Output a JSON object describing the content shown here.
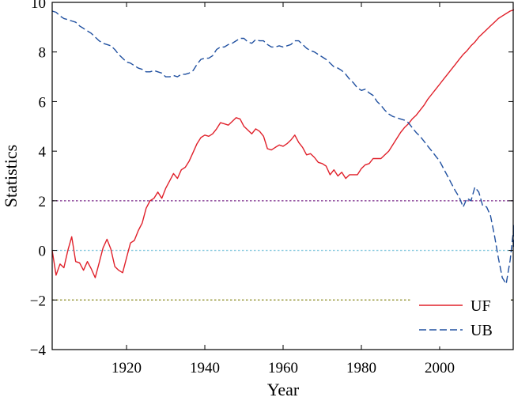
{
  "chart_data": {
    "type": "line",
    "xlabel": "Year",
    "ylabel": "Statistics",
    "xlim": [
      1901,
      2019
    ],
    "ylim": [
      -4,
      10
    ],
    "x_ticks": [
      1920,
      1940,
      1960,
      1980,
      2000
    ],
    "y_ticks": [
      -4,
      -2,
      0,
      2,
      4,
      6,
      8,
      10
    ],
    "y_tick_labels": [
      "−4",
      "−2",
      "0",
      "2",
      "4",
      "6",
      "8",
      "10"
    ],
    "grid": false,
    "legend_position": "bottom-right",
    "reference_lines": [
      {
        "y": 2,
        "color": "#7a2a8a",
        "style": "dotted"
      },
      {
        "y": 0,
        "color": "#7fc6dc",
        "style": "dotted"
      },
      {
        "y": -2,
        "color": "#8a8a20",
        "style": "dotted"
      }
    ],
    "series": [
      {
        "name": "UF",
        "color": "#e0202a",
        "style": "solid",
        "points": [
          [
            1901,
            0
          ],
          [
            1902,
            -1.0
          ],
          [
            1903,
            -0.55
          ],
          [
            1904,
            -0.7
          ],
          [
            1905,
            0.0
          ],
          [
            1906,
            0.55
          ],
          [
            1907,
            -0.45
          ],
          [
            1908,
            -0.5
          ],
          [
            1909,
            -0.8
          ],
          [
            1910,
            -0.45
          ],
          [
            1911,
            -0.75
          ],
          [
            1912,
            -1.1
          ],
          [
            1913,
            -0.5
          ],
          [
            1914,
            0.1
          ],
          [
            1915,
            0.45
          ],
          [
            1916,
            0.05
          ],
          [
            1917,
            -0.65
          ],
          [
            1918,
            -0.8
          ],
          [
            1919,
            -0.9
          ],
          [
            1920,
            -0.3
          ],
          [
            1921,
            0.3
          ],
          [
            1922,
            0.4
          ],
          [
            1923,
            0.8
          ],
          [
            1924,
            1.1
          ],
          [
            1925,
            1.7
          ],
          [
            1926,
            2.0
          ],
          [
            1927,
            2.1
          ],
          [
            1928,
            2.35
          ],
          [
            1929,
            2.1
          ],
          [
            1930,
            2.5
          ],
          [
            1931,
            2.8
          ],
          [
            1932,
            3.1
          ],
          [
            1933,
            2.9
          ],
          [
            1934,
            3.25
          ],
          [
            1935,
            3.35
          ],
          [
            1936,
            3.6
          ],
          [
            1937,
            3.95
          ],
          [
            1938,
            4.3
          ],
          [
            1939,
            4.55
          ],
          [
            1940,
            4.65
          ],
          [
            1941,
            4.6
          ],
          [
            1942,
            4.7
          ],
          [
            1943,
            4.9
          ],
          [
            1944,
            5.15
          ],
          [
            1945,
            5.1
          ],
          [
            1946,
            5.05
          ],
          [
            1947,
            5.2
          ],
          [
            1948,
            5.35
          ],
          [
            1949,
            5.3
          ],
          [
            1950,
            5.0
          ],
          [
            1951,
            4.85
          ],
          [
            1952,
            4.7
          ],
          [
            1953,
            4.9
          ],
          [
            1954,
            4.8
          ],
          [
            1955,
            4.6
          ],
          [
            1956,
            4.1
          ],
          [
            1957,
            4.05
          ],
          [
            1958,
            4.15
          ],
          [
            1959,
            4.25
          ],
          [
            1960,
            4.2
          ],
          [
            1961,
            4.3
          ],
          [
            1962,
            4.45
          ],
          [
            1963,
            4.65
          ],
          [
            1964,
            4.35
          ],
          [
            1965,
            4.15
          ],
          [
            1966,
            3.85
          ],
          [
            1967,
            3.9
          ],
          [
            1968,
            3.75
          ],
          [
            1969,
            3.55
          ],
          [
            1970,
            3.5
          ],
          [
            1971,
            3.4
          ],
          [
            1972,
            3.05
          ],
          [
            1973,
            3.25
          ],
          [
            1974,
            3.0
          ],
          [
            1975,
            3.15
          ],
          [
            1976,
            2.9
          ],
          [
            1977,
            3.05
          ],
          [
            1978,
            3.05
          ],
          [
            1979,
            3.05
          ],
          [
            1980,
            3.3
          ],
          [
            1981,
            3.45
          ],
          [
            1982,
            3.5
          ],
          [
            1983,
            3.7
          ],
          [
            1984,
            3.7
          ],
          [
            1985,
            3.7
          ],
          [
            1986,
            3.85
          ],
          [
            1987,
            4.0
          ],
          [
            1988,
            4.25
          ],
          [
            1989,
            4.5
          ],
          [
            1990,
            4.75
          ],
          [
            1991,
            4.95
          ],
          [
            1992,
            5.1
          ],
          [
            1993,
            5.3
          ],
          [
            1994,
            5.45
          ],
          [
            1995,
            5.65
          ],
          [
            1996,
            5.85
          ],
          [
            1997,
            6.1
          ],
          [
            1998,
            6.3
          ],
          [
            1999,
            6.5
          ],
          [
            2000,
            6.7
          ],
          [
            2001,
            6.9
          ],
          [
            2002,
            7.1
          ],
          [
            2003,
            7.3
          ],
          [
            2004,
            7.5
          ],
          [
            2005,
            7.7
          ],
          [
            2006,
            7.9
          ],
          [
            2007,
            8.05
          ],
          [
            2008,
            8.25
          ],
          [
            2009,
            8.4
          ],
          [
            2010,
            8.6
          ],
          [
            2011,
            8.75
          ],
          [
            2012,
            8.9
          ],
          [
            2013,
            9.05
          ],
          [
            2014,
            9.2
          ],
          [
            2015,
            9.35
          ],
          [
            2016,
            9.45
          ],
          [
            2017,
            9.55
          ],
          [
            2018,
            9.65
          ],
          [
            2019,
            9.7
          ]
        ]
      },
      {
        "name": "UB",
        "color": "#2050a0",
        "style": "dashed",
        "points": [
          [
            1901,
            9.65
          ],
          [
            1902,
            9.6
          ],
          [
            1903,
            9.45
          ],
          [
            1904,
            9.35
          ],
          [
            1905,
            9.3
          ],
          [
            1906,
            9.25
          ],
          [
            1907,
            9.2
          ],
          [
            1908,
            9.05
          ],
          [
            1909,
            8.95
          ],
          [
            1910,
            8.85
          ],
          [
            1911,
            8.75
          ],
          [
            1912,
            8.6
          ],
          [
            1913,
            8.45
          ],
          [
            1914,
            8.35
          ],
          [
            1915,
            8.3
          ],
          [
            1916,
            8.25
          ],
          [
            1917,
            8.1
          ],
          [
            1918,
            7.9
          ],
          [
            1919,
            7.75
          ],
          [
            1920,
            7.6
          ],
          [
            1921,
            7.55
          ],
          [
            1922,
            7.45
          ],
          [
            1923,
            7.35
          ],
          [
            1924,
            7.3
          ],
          [
            1925,
            7.2
          ],
          [
            1926,
            7.2
          ],
          [
            1927,
            7.25
          ],
          [
            1928,
            7.2
          ],
          [
            1929,
            7.15
          ],
          [
            1930,
            7.0
          ],
          [
            1931,
            7.0
          ],
          [
            1932,
            7.05
          ],
          [
            1933,
            7.0
          ],
          [
            1934,
            7.1
          ],
          [
            1935,
            7.1
          ],
          [
            1936,
            7.15
          ],
          [
            1937,
            7.25
          ],
          [
            1938,
            7.5
          ],
          [
            1939,
            7.7
          ],
          [
            1940,
            7.75
          ],
          [
            1941,
            7.75
          ],
          [
            1942,
            7.85
          ],
          [
            1943,
            8.1
          ],
          [
            1944,
            8.2
          ],
          [
            1945,
            8.2
          ],
          [
            1946,
            8.3
          ],
          [
            1947,
            8.35
          ],
          [
            1948,
            8.45
          ],
          [
            1949,
            8.55
          ],
          [
            1950,
            8.55
          ],
          [
            1951,
            8.4
          ],
          [
            1952,
            8.35
          ],
          [
            1953,
            8.5
          ],
          [
            1954,
            8.45
          ],
          [
            1955,
            8.45
          ],
          [
            1956,
            8.3
          ],
          [
            1957,
            8.2
          ],
          [
            1958,
            8.2
          ],
          [
            1959,
            8.25
          ],
          [
            1960,
            8.2
          ],
          [
            1961,
            8.25
          ],
          [
            1962,
            8.3
          ],
          [
            1963,
            8.45
          ],
          [
            1964,
            8.45
          ],
          [
            1965,
            8.3
          ],
          [
            1966,
            8.15
          ],
          [
            1967,
            8.05
          ],
          [
            1968,
            8.0
          ],
          [
            1969,
            7.9
          ],
          [
            1970,
            7.8
          ],
          [
            1971,
            7.7
          ],
          [
            1972,
            7.55
          ],
          [
            1973,
            7.4
          ],
          [
            1974,
            7.35
          ],
          [
            1975,
            7.25
          ],
          [
            1976,
            7.1
          ],
          [
            1977,
            6.9
          ],
          [
            1978,
            6.75
          ],
          [
            1979,
            6.55
          ],
          [
            1980,
            6.45
          ],
          [
            1981,
            6.5
          ],
          [
            1982,
            6.35
          ],
          [
            1983,
            6.25
          ],
          [
            1984,
            6.0
          ],
          [
            1985,
            5.85
          ],
          [
            1986,
            5.65
          ],
          [
            1987,
            5.5
          ],
          [
            1988,
            5.4
          ],
          [
            1989,
            5.35
          ],
          [
            1990,
            5.3
          ],
          [
            1991,
            5.25
          ],
          [
            1992,
            5.15
          ],
          [
            1993,
            4.95
          ],
          [
            1994,
            4.75
          ],
          [
            1995,
            4.6
          ],
          [
            1996,
            4.4
          ],
          [
            1997,
            4.2
          ],
          [
            1998,
            4.0
          ],
          [
            1999,
            3.8
          ],
          [
            2000,
            3.6
          ],
          [
            2001,
            3.3
          ],
          [
            2002,
            3.0
          ],
          [
            2003,
            2.7
          ],
          [
            2004,
            2.4
          ],
          [
            2005,
            2.15
          ],
          [
            2006,
            1.75
          ],
          [
            2007,
            2.1
          ],
          [
            2008,
            2.0
          ],
          [
            2009,
            2.55
          ],
          [
            2010,
            2.35
          ],
          [
            2011,
            1.8
          ],
          [
            2012,
            1.75
          ],
          [
            2013,
            1.4
          ],
          [
            2014,
            0.6
          ],
          [
            2015,
            -0.3
          ],
          [
            2016,
            -1.1
          ],
          [
            2017,
            -1.35
          ],
          [
            2018,
            -0.4
          ],
          [
            2019,
            1.0
          ],
          [
            2019.5,
            0.1
          ]
        ]
      }
    ]
  }
}
